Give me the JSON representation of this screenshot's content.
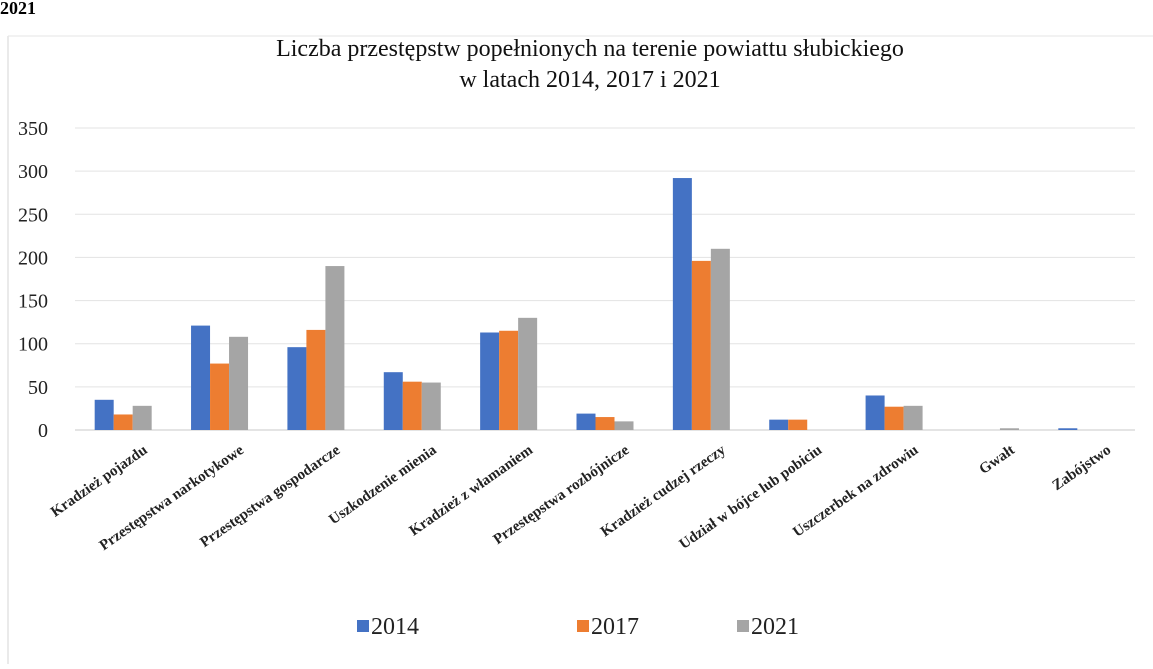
{
  "page": {
    "corner_label": "2021"
  },
  "chart_data": {
    "type": "bar",
    "title": "Liczba przestępstw popełnionych na terenie powiattu słubickiego",
    "subtitle": "w latach 2014, 2017 i 2021",
    "xlabel": "",
    "ylabel": "",
    "ylim": [
      0,
      350
    ],
    "yticks": [
      0,
      50,
      100,
      150,
      200,
      250,
      300,
      350
    ],
    "grid": true,
    "legend_position": "bottom",
    "categories": [
      "Kradzież pojazdu",
      "Przestępstwa narkotykowe",
      "Przestępstwa gospodarcze",
      "Uszkodzenie mienia",
      "Kradzież z włamaniem",
      "Przestępstwa rozbójnicze",
      "Kradzież cudzej rzeczy",
      "Udział w bójce lub pobiciu",
      "Uszczerbek na zdrowiu",
      "Gwałt",
      "Zabójstwo"
    ],
    "series": [
      {
        "name": "2014",
        "color": "#4472C4",
        "values": [
          35,
          121,
          96,
          67,
          113,
          19,
          292,
          12,
          40,
          0,
          2
        ]
      },
      {
        "name": "2017",
        "color": "#ED7D31",
        "values": [
          18,
          77,
          116,
          56,
          115,
          15,
          196,
          12,
          27,
          0,
          0
        ]
      },
      {
        "name": "2021",
        "color": "#A5A5A5",
        "values": [
          28,
          108,
          190,
          55,
          130,
          10,
          210,
          0,
          28,
          2,
          0
        ]
      }
    ]
  }
}
